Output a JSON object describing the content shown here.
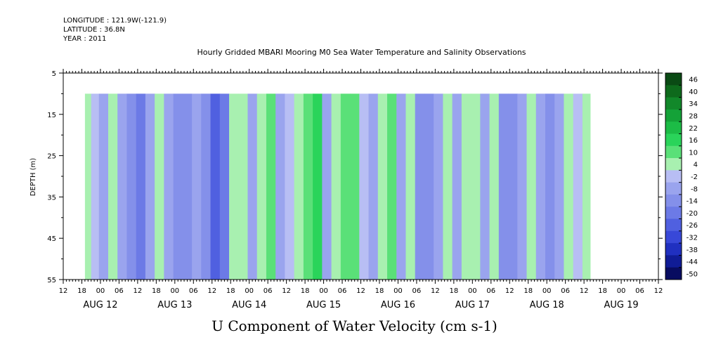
{
  "header": {
    "longitude": "LONGITUDE : 121.9W(-121.9)",
    "latitude": "LATITUDE : 36.8N",
    "year": "YEAR : 2011",
    "title": "Hourly Gridded MBARI Mooring M0 Sea Water Temperature and Salinity Observations"
  },
  "colors": {
    "positive": "#33dd55",
    "negative": "#4060e0",
    "neutral": "#b0b8f0",
    "background": "#ffffff"
  },
  "chart_data": {
    "type": "heatmap",
    "title": "Hourly Gridded MBARI Mooring M0 Sea Water Temperature and Salinity Observations",
    "xlabel": "U Component of Water Velocity (cm s-1)",
    "ylabel": "DEPTH (m)",
    "ylim": [
      55,
      5
    ],
    "y_ticks": [
      "5",
      "15",
      "25",
      "35",
      "45",
      "55"
    ],
    "x_hour_ticks": [
      "12",
      "18",
      "00",
      "06",
      "12",
      "18",
      "00",
      "06",
      "12",
      "18",
      "00",
      "06",
      "12",
      "18",
      "00",
      "06",
      "12",
      "18",
      "00",
      "06",
      "12",
      "18",
      "00",
      "06",
      "12",
      "18",
      "00",
      "06",
      "12",
      "18",
      "00",
      "06",
      "12"
    ],
    "x_day_labels": [
      "AUG 12",
      "AUG 13",
      "AUG 14",
      "AUG 15",
      "AUG 16",
      "AUG 17",
      "AUG 18",
      "AUG 19"
    ],
    "data_depth_range": [
      10,
      55
    ],
    "data_start_hours_after_aug12_12": 7,
    "data_end_hours_after_aug12_12": 170,
    "u_velocity_bands": [
      {
        "hour": 8,
        "u": 6
      },
      {
        "hour": 10,
        "u": 2
      },
      {
        "hour": 13,
        "u": -3
      },
      {
        "hour": 16,
        "u": 4
      },
      {
        "hour": 19,
        "u": -4
      },
      {
        "hour": 22,
        "u": -12
      },
      {
        "hour": 25,
        "u": -18
      },
      {
        "hour": 28,
        "u": -8
      },
      {
        "hour": 31,
        "u": 4
      },
      {
        "hour": 34,
        "u": -6
      },
      {
        "hour": 37,
        "u": -14
      },
      {
        "hour": 40,
        "u": -10
      },
      {
        "hour": 43,
        "u": -4
      },
      {
        "hour": 46,
        "u": -14
      },
      {
        "hour": 49,
        "u": -22
      },
      {
        "hour": 52,
        "u": -16
      },
      {
        "hour": 55,
        "u": 6
      },
      {
        "hour": 58,
        "u": 8
      },
      {
        "hour": 61,
        "u": -4
      },
      {
        "hour": 64,
        "u": 6
      },
      {
        "hour": 67,
        "u": 10
      },
      {
        "hour": 70,
        "u": -6
      },
      {
        "hour": 73,
        "u": -2
      },
      {
        "hour": 76,
        "u": 6
      },
      {
        "hour": 79,
        "u": 14
      },
      {
        "hour": 82,
        "u": 16
      },
      {
        "hour": 85,
        "u": -6
      },
      {
        "hour": 88,
        "u": 4
      },
      {
        "hour": 91,
        "u": 12
      },
      {
        "hour": 94,
        "u": 14
      },
      {
        "hour": 97,
        "u": -2
      },
      {
        "hour": 100,
        "u": -8
      },
      {
        "hour": 103,
        "u": 6
      },
      {
        "hour": 106,
        "u": 10
      },
      {
        "hour": 109,
        "u": -8
      },
      {
        "hour": 112,
        "u": 4
      },
      {
        "hour": 115,
        "u": -10
      },
      {
        "hour": 118,
        "u": -14
      },
      {
        "hour": 121,
        "u": -6
      },
      {
        "hour": 124,
        "u": 4
      },
      {
        "hour": 127,
        "u": -8
      },
      {
        "hour": 130,
        "u": 6
      },
      {
        "hour": 133,
        "u": 8
      },
      {
        "hour": 136,
        "u": -6
      },
      {
        "hour": 139,
        "u": 4
      },
      {
        "hour": 142,
        "u": -10
      },
      {
        "hour": 145,
        "u": -14
      },
      {
        "hour": 148,
        "u": -8
      },
      {
        "hour": 151,
        "u": 4
      },
      {
        "hour": 154,
        "u": -4
      },
      {
        "hour": 157,
        "u": -12
      },
      {
        "hour": 160,
        "u": -6
      },
      {
        "hour": 163,
        "u": 4
      },
      {
        "hour": 166,
        "u": -2
      },
      {
        "hour": 169,
        "u": 4
      }
    ],
    "colorbar": {
      "levels": [
        "46",
        "40",
        "34",
        "28",
        "22",
        "16",
        "10",
        "4",
        "-2",
        "-8",
        "-14",
        "-20",
        "-26",
        "-32",
        "-38",
        "-44",
        "-50"
      ],
      "colors": [
        "#0a4a14",
        "#0e6a1c",
        "#12882a",
        "#14a238",
        "#1cbc46",
        "#2ad45a",
        "#5ae078",
        "#a8f0b0",
        "#b8bef4",
        "#9aa4ee",
        "#8490ea",
        "#6c7ae6",
        "#5060e0",
        "#3848d8",
        "#2030c0",
        "#101c96",
        "#080c60"
      ]
    }
  }
}
